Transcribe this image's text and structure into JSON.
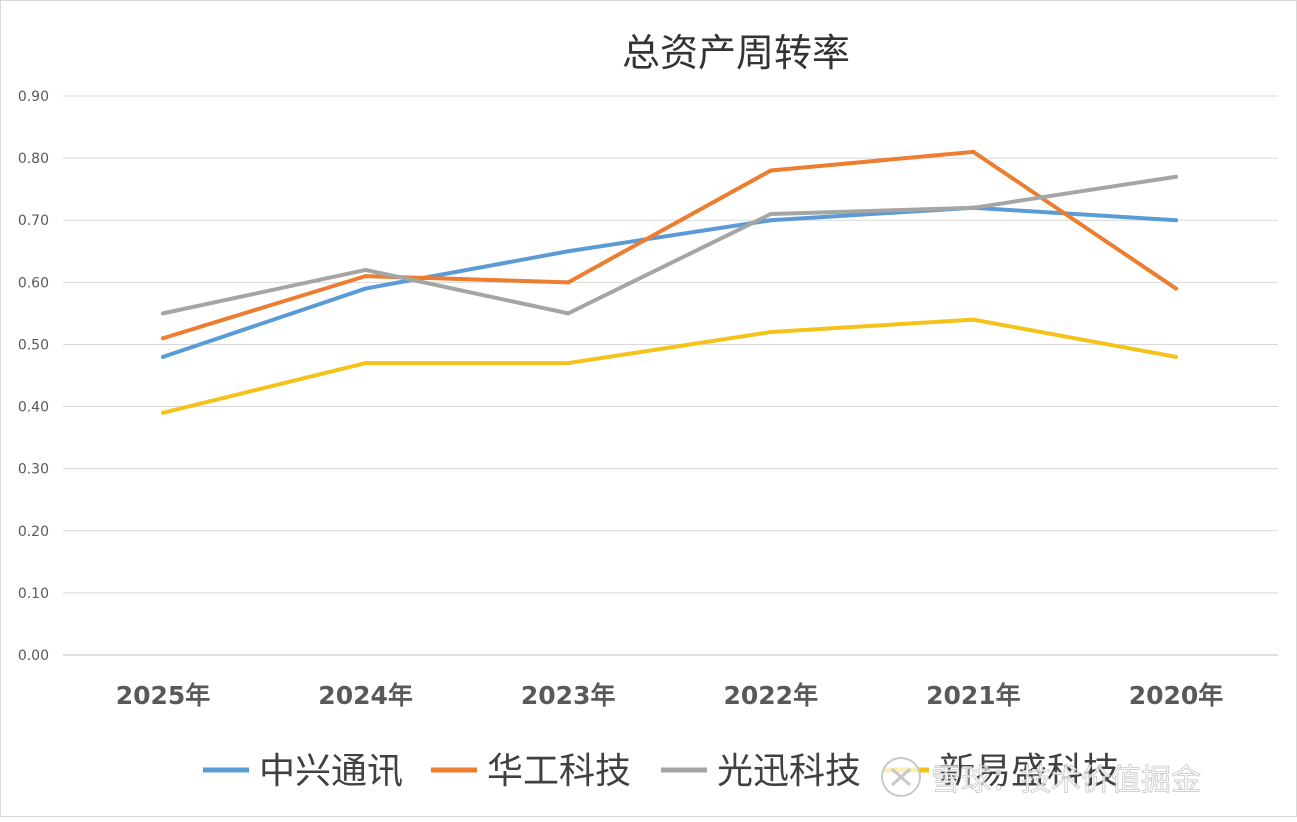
{
  "chart_data": {
    "type": "line",
    "title": "总资产周转率",
    "xlabel": "",
    "ylabel": "",
    "categories": [
      "2025年",
      "2024年",
      "2023年",
      "2022年",
      "2021年",
      "2020年"
    ],
    "ylim": [
      0,
      0.9
    ],
    "yticks": [
      "0.00",
      "0.10",
      "0.20",
      "0.30",
      "0.40",
      "0.50",
      "0.60",
      "0.70",
      "0.80",
      "0.90"
    ],
    "grid": true,
    "legend_position": "bottom",
    "series": [
      {
        "name": "中兴通讯",
        "color": "#5b9bd5",
        "values": [
          0.48,
          0.59,
          0.65,
          0.7,
          0.72,
          0.7
        ]
      },
      {
        "name": "华工科技",
        "color": "#ed7d31",
        "values": [
          0.51,
          0.61,
          0.6,
          0.78,
          0.81,
          0.59
        ]
      },
      {
        "name": "光迅科技",
        "color": "#a5a5a5",
        "values": [
          0.55,
          0.62,
          0.55,
          0.71,
          0.72,
          0.77
        ]
      },
      {
        "name": "新易盛科技",
        "color": "#f5c21a",
        "values": [
          0.39,
          0.47,
          0.47,
          0.52,
          0.54,
          0.48
        ]
      }
    ]
  },
  "watermark": {
    "text": "雪球：技术价值掘金",
    "icon": "snowball-logo-icon"
  },
  "colors": {
    "grid": "#d9d9d9",
    "axis": "#bfbfbf"
  }
}
